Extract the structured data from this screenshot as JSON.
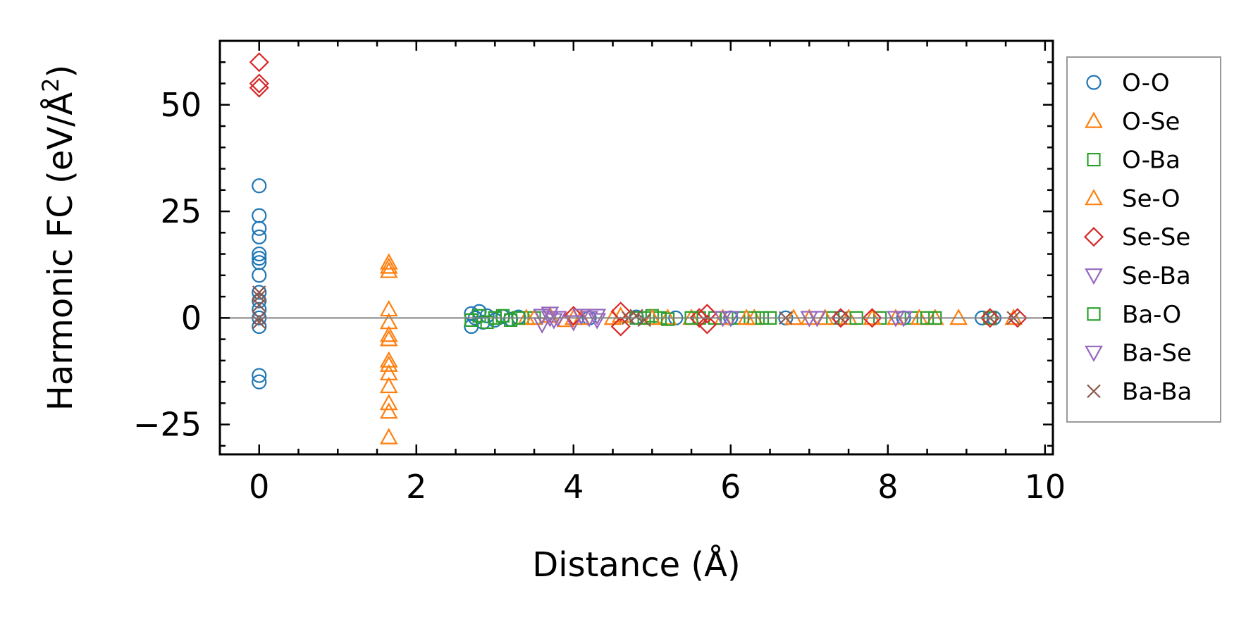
{
  "chart_data": {
    "type": "scatter",
    "xlabel": "Distance (Å)",
    "ylabel": "Harmonic FC (eV/Å",
    "ylabel_superscript": "2",
    "ylabel_suffix": ")",
    "xlim": [
      -0.5,
      10.1
    ],
    "ylim": [
      -32,
      65
    ],
    "xticks": [
      0,
      2,
      4,
      6,
      8,
      10
    ],
    "xtick_labels": [
      "0",
      "2",
      "4",
      "6",
      "8",
      "10"
    ],
    "yticks": [
      -25,
      0,
      25,
      50
    ],
    "ytick_labels": [
      "−25",
      "0",
      "25",
      "50"
    ],
    "zero_line": true,
    "grid": false,
    "legend_position": "outside-right",
    "series": [
      {
        "name": "O-O",
        "marker": "circle",
        "color": "#1f77b4",
        "points": [
          [
            0,
            31
          ],
          [
            0,
            24
          ],
          [
            0,
            21
          ],
          [
            0,
            19
          ],
          [
            0,
            15
          ],
          [
            0,
            14
          ],
          [
            0,
            13
          ],
          [
            0,
            10
          ],
          [
            0,
            6
          ],
          [
            0,
            4
          ],
          [
            0,
            2
          ],
          [
            0,
            0
          ],
          [
            0,
            -2
          ],
          [
            0,
            -13.5
          ],
          [
            0,
            -15
          ],
          [
            2.7,
            1
          ],
          [
            2.7,
            -2
          ],
          [
            2.75,
            0
          ],
          [
            2.8,
            1.5
          ],
          [
            2.85,
            -1
          ],
          [
            2.9,
            0.5
          ],
          [
            3.0,
            -0.5
          ],
          [
            3.1,
            0.3
          ],
          [
            3.2,
            -0.3
          ],
          [
            3.3,
            0.2
          ],
          [
            4.2,
            0
          ],
          [
            4.8,
            0.2
          ],
          [
            5.3,
            0
          ],
          [
            6.0,
            0
          ],
          [
            6.7,
            0
          ],
          [
            7.4,
            0
          ],
          [
            8.2,
            0
          ],
          [
            9.2,
            0
          ],
          [
            9.35,
            0
          ]
        ]
      },
      {
        "name": "O-Se",
        "marker": "triangle-up",
        "color": "#ff7f0e",
        "points": [
          [
            1.65,
            13
          ],
          [
            1.65,
            12
          ],
          [
            1.65,
            11
          ],
          [
            1.65,
            2
          ],
          [
            1.65,
            -1
          ],
          [
            1.65,
            -4
          ],
          [
            1.65,
            -5
          ],
          [
            1.65,
            -10
          ],
          [
            1.65,
            -11
          ],
          [
            1.65,
            -13
          ],
          [
            1.65,
            -16
          ],
          [
            1.65,
            -20
          ],
          [
            1.65,
            -22
          ],
          [
            1.65,
            -28
          ],
          [
            3.4,
            0
          ],
          [
            3.7,
            0.5
          ],
          [
            3.9,
            -0.5
          ],
          [
            4.1,
            0
          ],
          [
            4.6,
            0.5
          ],
          [
            5.2,
            0
          ],
          [
            5.9,
            0
          ],
          [
            6.3,
            0
          ],
          [
            7.0,
            0
          ],
          [
            7.5,
            0
          ],
          [
            8.1,
            0
          ],
          [
            8.6,
            0
          ],
          [
            8.9,
            0
          ],
          [
            9.6,
            0
          ]
        ]
      },
      {
        "name": "O-Ba",
        "marker": "square",
        "color": "#2ca02c",
        "points": [
          [
            2.7,
            -0.5
          ],
          [
            2.8,
            0.5
          ],
          [
            2.9,
            -1
          ],
          [
            3.0,
            0
          ],
          [
            3.1,
            0.5
          ],
          [
            3.2,
            -0.5
          ],
          [
            3.3,
            0
          ],
          [
            3.5,
            0
          ],
          [
            4.8,
            0
          ],
          [
            5.0,
            0.5
          ],
          [
            5.1,
            0
          ],
          [
            5.2,
            -0.3
          ],
          [
            5.6,
            0
          ],
          [
            5.8,
            0
          ],
          [
            6.1,
            0
          ],
          [
            6.3,
            0
          ],
          [
            6.5,
            0
          ],
          [
            7.3,
            0
          ],
          [
            7.9,
            0
          ],
          [
            8.3,
            0
          ],
          [
            8.6,
            0
          ],
          [
            9.3,
            0
          ]
        ]
      },
      {
        "name": "Se-O",
        "marker": "triangle-up",
        "color": "#ff7f0e",
        "points": [
          [
            3.5,
            0
          ],
          [
            4.0,
            0
          ],
          [
            4.5,
            0
          ],
          [
            5.0,
            0
          ],
          [
            5.5,
            0
          ],
          [
            6.2,
            0
          ],
          [
            6.8,
            0
          ],
          [
            7.2,
            0
          ],
          [
            7.8,
            0
          ],
          [
            8.4,
            0
          ]
        ]
      },
      {
        "name": "Se-Se",
        "marker": "diamond",
        "color": "#d62728",
        "points": [
          [
            0,
            60
          ],
          [
            0,
            55
          ],
          [
            0,
            54
          ],
          [
            4.0,
            0.5
          ],
          [
            4.6,
            -2
          ],
          [
            4.6,
            1.5
          ],
          [
            5.7,
            1
          ],
          [
            5.7,
            -1.5
          ],
          [
            5.6,
            0
          ],
          [
            7.4,
            0
          ],
          [
            7.8,
            0
          ],
          [
            9.3,
            0
          ],
          [
            9.65,
            0
          ]
        ]
      },
      {
        "name": "Se-Ba",
        "marker": "triangle-down",
        "color": "#9467bd",
        "points": [
          [
            3.6,
            0.5
          ],
          [
            3.6,
            -1.5
          ],
          [
            3.7,
            1
          ],
          [
            3.75,
            -0.5
          ],
          [
            3.8,
            0
          ],
          [
            4.0,
            -1
          ],
          [
            4.1,
            0.5
          ],
          [
            4.3,
            -0.5
          ],
          [
            4.3,
            0.5
          ],
          [
            5.9,
            0
          ],
          [
            7.1,
            0
          ],
          [
            8.2,
            0
          ]
        ]
      },
      {
        "name": "Ba-O",
        "marker": "square",
        "color": "#2ca02c",
        "points": [
          [
            3.0,
            0
          ],
          [
            3.3,
            0
          ],
          [
            4.9,
            0
          ],
          [
            5.5,
            0
          ],
          [
            6.4,
            0
          ],
          [
            7.6,
            0
          ],
          [
            8.5,
            0
          ]
        ]
      },
      {
        "name": "Ba-Se",
        "marker": "triangle-down",
        "color": "#9467bd",
        "points": [
          [
            3.7,
            0
          ],
          [
            4.2,
            0
          ],
          [
            6.0,
            0
          ],
          [
            7.0,
            0
          ],
          [
            8.1,
            0
          ]
        ]
      },
      {
        "name": "Ba-Ba",
        "marker": "x",
        "color": "#8c564b",
        "points": [
          [
            0,
            6
          ],
          [
            0,
            5
          ],
          [
            0,
            3
          ],
          [
            0,
            0
          ],
          [
            0,
            -1
          ],
          [
            4.7,
            0
          ],
          [
            4.8,
            0.5
          ],
          [
            4.9,
            -0.5
          ],
          [
            6.7,
            0
          ],
          [
            7.4,
            0
          ],
          [
            9.3,
            0
          ],
          [
            9.6,
            0
          ]
        ]
      }
    ]
  }
}
